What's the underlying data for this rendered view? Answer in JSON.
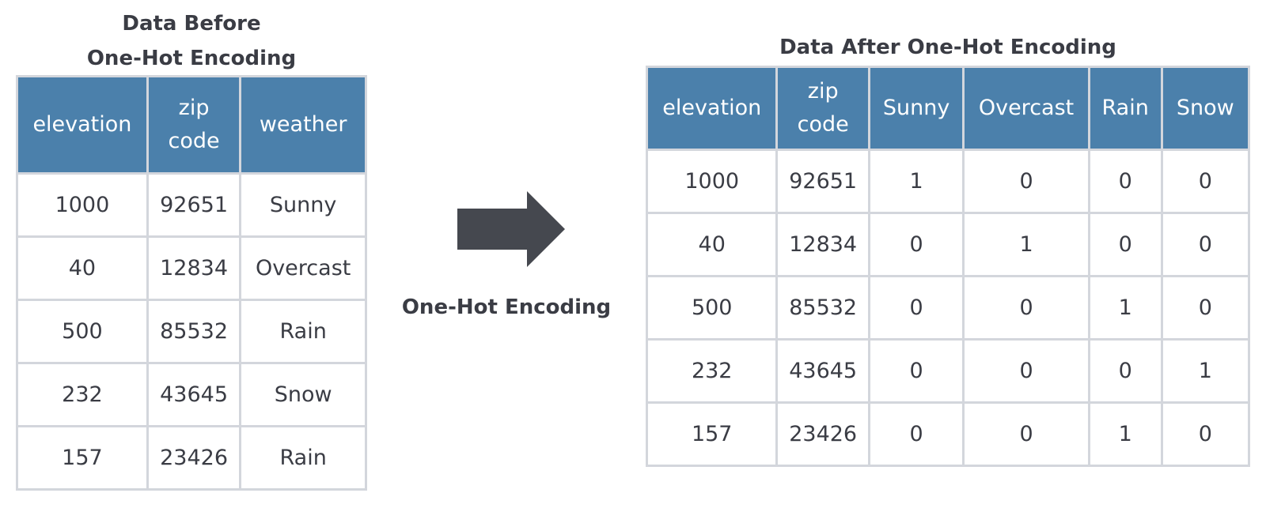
{
  "before": {
    "title_line1": "Data Before",
    "title_line2": "One-Hot Encoding",
    "columns": [
      {
        "line1": "elevation",
        "line2": ""
      },
      {
        "line1": "zip",
        "line2": "code"
      },
      {
        "line1": "weather",
        "line2": ""
      }
    ],
    "rows": [
      [
        "1000",
        "92651",
        "Sunny"
      ],
      [
        "40",
        "12834",
        "Overcast"
      ],
      [
        "500",
        "85532",
        "Rain"
      ],
      [
        "232",
        "43645",
        "Snow"
      ],
      [
        "157",
        "23426",
        "Rain"
      ]
    ]
  },
  "transform": {
    "arrow_icon": "right-arrow-icon",
    "caption": "One-Hot Encoding",
    "arrow_color": "#45484f"
  },
  "after": {
    "title": "Data After One-Hot Encoding",
    "columns": [
      {
        "line1": "elevation",
        "line2": ""
      },
      {
        "line1": "zip",
        "line2": "code"
      },
      {
        "line1": "Sunny",
        "line2": ""
      },
      {
        "line1": "Overcast",
        "line2": ""
      },
      {
        "line1": "Rain",
        "line2": ""
      },
      {
        "line1": "Snow",
        "line2": ""
      }
    ],
    "rows": [
      [
        "1000",
        "92651",
        "1",
        "0",
        "0",
        "0"
      ],
      [
        "40",
        "12834",
        "0",
        "1",
        "0",
        "0"
      ],
      [
        "500",
        "85532",
        "0",
        "0",
        "1",
        "0"
      ],
      [
        "232",
        "43645",
        "0",
        "0",
        "0",
        "1"
      ],
      [
        "157",
        "23426",
        "0",
        "0",
        "1",
        "0"
      ]
    ]
  },
  "colors": {
    "header_bg": "#4b80ab",
    "header_text": "#ffffff",
    "border": "#d3d6dc",
    "text": "#3a3c44"
  }
}
